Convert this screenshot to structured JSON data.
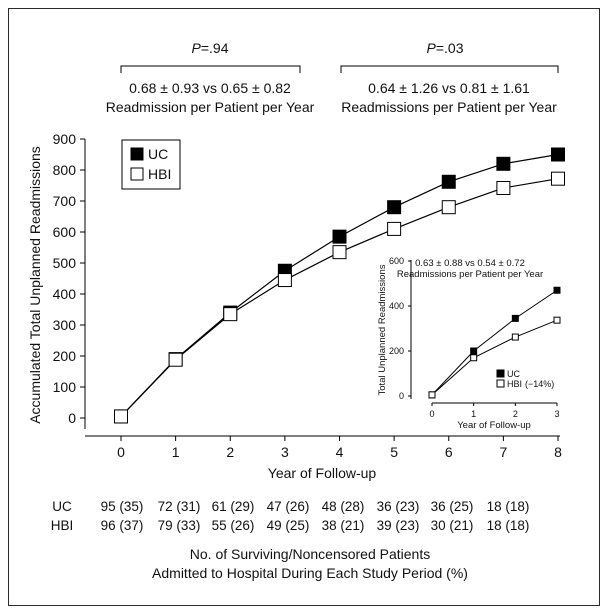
{
  "chart_data": [
    {
      "type": "line",
      "ylabel": "Accumulated Total Unplanned Readmissions",
      "xlabel": "Year of Follow-up",
      "x": [
        0,
        1,
        2,
        3,
        4,
        5,
        6,
        7,
        8
      ],
      "xlim": [
        0,
        8
      ],
      "ylim": [
        0,
        900
      ],
      "yticks": [
        0,
        100,
        200,
        300,
        400,
        500,
        600,
        700,
        800,
        900
      ],
      "legend": "top-left",
      "series": [
        {
          "name": "UC",
          "marker": "filled-square",
          "values": [
            5,
            190,
            340,
            475,
            585,
            680,
            762,
            820,
            850
          ]
        },
        {
          "name": "HBI",
          "marker": "open-square",
          "values": [
            5,
            188,
            335,
            445,
            535,
            610,
            680,
            742,
            772
          ]
        }
      ],
      "annotations": [
        {
          "p_prefix": "P",
          "p_value": "=.94",
          "comparison": "0.68 ± 0.93 vs 0.65 ± 0.82",
          "caption": "Readmission per Patient per Year"
        },
        {
          "p_prefix": "P",
          "p_value": "=.03",
          "comparison": "0.64 ± 1.26 vs 0.81 ± 1.61",
          "caption": "Readmissions per Patient per Year"
        }
      ]
    },
    {
      "type": "line",
      "ylabel": "Total Unplanned Readmissions",
      "xlabel": "Year of Follow-up",
      "x": [
        0,
        1,
        2,
        3
      ],
      "xlim": [
        0,
        3
      ],
      "ylim": [
        0,
        600
      ],
      "yticks": [
        0,
        200,
        400,
        600
      ],
      "legend": "bottom-right",
      "title_line1": "0.63 ± 0.88 vs 0.54 ± 0.72",
      "title_line2": "Readmissions per Patient per Year",
      "series": [
        {
          "name": "UC",
          "marker": "filled-square",
          "values": [
            5,
            200,
            345,
            470
          ]
        },
        {
          "name": "HBI",
          "note": "(−14%)",
          "marker": "open-square",
          "values": [
            5,
            170,
            262,
            337
          ]
        }
      ]
    }
  ],
  "patient_table": {
    "rows": [
      {
        "label": "UC",
        "cells": [
          "95 (35)",
          "72 (31)",
          "61 (29)",
          "47 (26)",
          "48 (28)",
          "36 (23)",
          "36 (25)",
          "18 (18)"
        ]
      },
      {
        "label": "HBI",
        "cells": [
          "96 (37)",
          "79 (33)",
          "55 (26)",
          "49 (25)",
          "38 (21)",
          "39 (23)",
          "30 (21)",
          "18 (18)"
        ]
      }
    ],
    "caption_line1": "No. of Surviving/Noncensored Patients",
    "caption_line2": "Admitted to Hospital During Each Study Period (%)"
  },
  "colors": {
    "line": "#000000",
    "filled_marker": "#000000",
    "open_marker": "#ffffff"
  }
}
